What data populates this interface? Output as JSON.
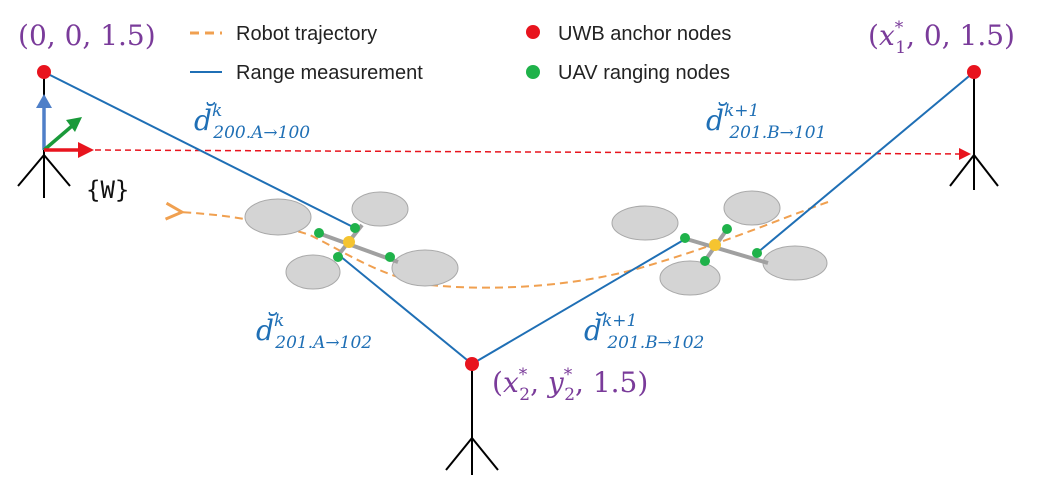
{
  "legend": {
    "trajectory": "Robot trajectory",
    "range": "Range measurement",
    "anchors": "UWB anchor nodes",
    "uav": "UAV ranging nodes"
  },
  "frame_label": "{W}",
  "anchors": {
    "a1": {
      "open": "(",
      "c1": "0",
      "c2": "0",
      "c3": "1.5",
      "close": ")",
      "sep": ", "
    },
    "a2": {
      "open": "(",
      "base1": "x",
      "sub1": "1",
      "sup1": "*",
      "c2": "0",
      "c3": "1.5",
      "close": ")",
      "sep": ", "
    },
    "a3": {
      "open": "(",
      "base1": "x",
      "sub1": "2",
      "sup1": "*",
      "base2": "y",
      "sub2": "2",
      "sup2": "*",
      "c3": "1.5",
      "close": ")",
      "sep": ", "
    }
  },
  "measurements": {
    "m1": {
      "base": "d̆",
      "sup": "k",
      "sub": "200.A→100"
    },
    "m2": {
      "base": "d̆",
      "sup": "k+1",
      "sub": "201.B→101"
    },
    "m3": {
      "base": "d̆",
      "sup": "k",
      "sub": "201.A→102"
    },
    "m4": {
      "base": "d̆",
      "sup": "k+1",
      "sub": "201.B→102"
    }
  },
  "colors": {
    "range_line": "#1f6fb5",
    "trajectory": "#f0a050",
    "anchor": "#e8141e",
    "uav_node": "#1fb24a",
    "label_purple": "#7a3b9a",
    "label_blue": "#1f6fb5",
    "frame_dash": "#e8141e",
    "axis_x": "#e8141e",
    "axis_y": "#1a9a3a",
    "axis_z": "#4f7fc8",
    "rotor": "#d4d4d4",
    "hub": "#f5c430"
  }
}
